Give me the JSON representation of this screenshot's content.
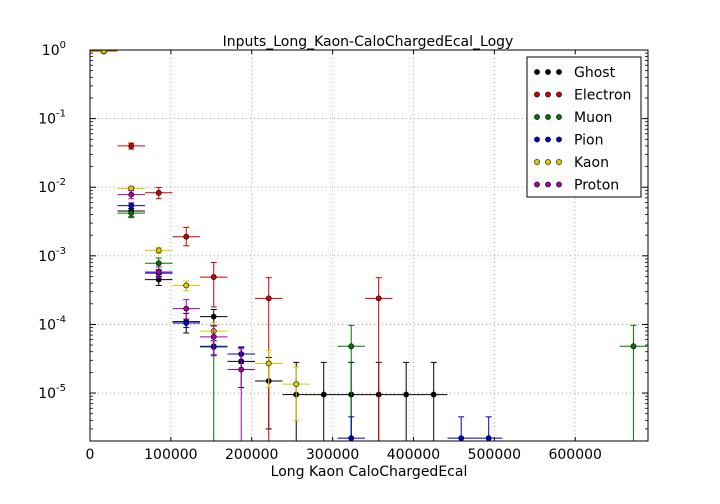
{
  "chart_data": {
    "type": "scatter",
    "title": "Inputs_Long_Kaon-CaloChargedEcal_Logy",
    "xlabel": "Long Kaon CaloChargedEcal",
    "ylabel": "",
    "xlim": [
      0,
      690000
    ],
    "ylim": [
      2e-06,
      1
    ],
    "yscale": "log",
    "grid": true,
    "legend_position": "top-right",
    "x_ticks": [
      0,
      100000,
      200000,
      300000,
      400000,
      500000,
      600000
    ],
    "x_tick_labels": [
      "0",
      "100000",
      "200000",
      "300000",
      "400000",
      "500000",
      "600000"
    ],
    "y_ticks": [
      1e-05,
      0.0001,
      0.001,
      0.01,
      0.1,
      1
    ],
    "y_tick_labels": [
      {
        "base": "10",
        "exp": "-5"
      },
      {
        "base": "10",
        "exp": "-4"
      },
      {
        "base": "10",
        "exp": "-3"
      },
      {
        "base": "10",
        "exp": "-2"
      },
      {
        "base": "10",
        "exp": "-1"
      },
      {
        "base": "10",
        "exp": "0"
      }
    ],
    "bin_half_width": 17000,
    "series": [
      {
        "name": "Ghost",
        "color": "#000000",
        "points": [
          {
            "x": 17000,
            "y": 0.97,
            "lo": 0.95,
            "hi": 0.99
          },
          {
            "x": 51000,
            "y": 0.0045,
            "lo": 0.0037,
            "hi": 0.0053
          },
          {
            "x": 85000,
            "y": 0.00045,
            "lo": 0.00037,
            "hi": 0.00053
          },
          {
            "x": 119000,
            "y": 0.00011,
            "lo": 7.5e-05,
            "hi": 0.000145
          },
          {
            "x": 153000,
            "y": 0.00013,
            "lo": 9.5e-05,
            "hi": 0.000165
          },
          {
            "x": 187000,
            "y": 2.9e-05,
            "lo": 1.2e-05,
            "hi": 4.6e-05
          },
          {
            "x": 221000,
            "y": 1.5e-05,
            "lo": 3e-06,
            "hi": 3.3e-05
          },
          {
            "x": 255000,
            "y": 9.5e-06,
            "lo": 1e-06,
            "hi": 2.8e-05
          },
          {
            "x": 289000,
            "y": 9.5e-06,
            "lo": 1e-06,
            "hi": 2.8e-05
          },
          {
            "x": 323000,
            "y": 9.5e-06,
            "lo": 1e-06,
            "hi": 2.8e-05
          },
          {
            "x": 357000,
            "y": 9.5e-06,
            "lo": 1e-06,
            "hi": 2.8e-05
          },
          {
            "x": 391000,
            "y": 9.5e-06,
            "lo": 1e-06,
            "hi": 2.8e-05
          },
          {
            "x": 425000,
            "y": 9.5e-06,
            "lo": 1e-06,
            "hi": 2.8e-05
          }
        ]
      },
      {
        "name": "Electron",
        "color": "#cc0000",
        "points": [
          {
            "x": 17000,
            "y": 0.95,
            "lo": 0.92,
            "hi": 0.98
          },
          {
            "x": 51000,
            "y": 0.04,
            "lo": 0.036,
            "hi": 0.044
          },
          {
            "x": 85000,
            "y": 0.0083,
            "lo": 0.0068,
            "hi": 0.0099
          },
          {
            "x": 119000,
            "y": 0.0019,
            "lo": 0.0014,
            "hi": 0.0026
          },
          {
            "x": 153000,
            "y": 0.00049,
            "lo": 0.00018,
            "hi": 0.0008
          },
          {
            "x": 221000,
            "y": 0.00024,
            "lo": 1e-06,
            "hi": 0.00048
          },
          {
            "x": 357000,
            "y": 0.00024,
            "lo": 1e-06,
            "hi": 0.00048
          }
        ]
      },
      {
        "name": "Muon",
        "color": "#007700",
        "points": [
          {
            "x": 51000,
            "y": 0.0042,
            "lo": 0.0036,
            "hi": 0.0049
          },
          {
            "x": 85000,
            "y": 0.00078,
            "lo": 0.00063,
            "hi": 0.00093
          },
          {
            "x": 153000,
            "y": 4.8e-05,
            "lo": 1e-06,
            "hi": 9.7e-05
          },
          {
            "x": 323000,
            "y": 4.8e-05,
            "lo": 1e-06,
            "hi": 9.7e-05
          },
          {
            "x": 672000,
            "y": 4.8e-05,
            "lo": 1e-06,
            "hi": 9.7e-05
          }
        ]
      },
      {
        "name": "Pion",
        "color": "#0000cc",
        "points": [
          {
            "x": 51000,
            "y": 0.0054,
            "lo": 0.0049,
            "hi": 0.0059
          },
          {
            "x": 85000,
            "y": 0.00056,
            "lo": 0.0005,
            "hi": 0.00062
          },
          {
            "x": 119000,
            "y": 0.000105,
            "lo": 9e-05,
            "hi": 0.00012
          },
          {
            "x": 153000,
            "y": 4.7e-05,
            "lo": 3.6e-05,
            "hi": 5.8e-05
          },
          {
            "x": 187000,
            "y": 3.7e-05,
            "lo": 2.7e-05,
            "hi": 4.7e-05
          },
          {
            "x": 323000,
            "y": 2.2e-06,
            "lo": 1e-06,
            "hi": 4.5e-06
          },
          {
            "x": 459000,
            "y": 2.2e-06,
            "lo": 1e-06,
            "hi": 4.5e-06
          },
          {
            "x": 493000,
            "y": 2.2e-06,
            "lo": 1e-06,
            "hi": 4.5e-06
          }
        ]
      },
      {
        "name": "Kaon",
        "color": "#ddcc00",
        "points": [
          {
            "x": 17000,
            "y": 0.96,
            "lo": 0.94,
            "hi": 0.98
          },
          {
            "x": 51000,
            "y": 0.0096,
            "lo": 0.009,
            "hi": 0.0102
          },
          {
            "x": 85000,
            "y": 0.0012,
            "lo": 0.00108,
            "hi": 0.00132
          },
          {
            "x": 119000,
            "y": 0.00037,
            "lo": 0.00031,
            "hi": 0.00043
          },
          {
            "x": 153000,
            "y": 8e-05,
            "lo": 5.5e-05,
            "hi": 0.000105
          },
          {
            "x": 221000,
            "y": 2.7e-05,
            "lo": 1.2e-05,
            "hi": 4.2e-05
          },
          {
            "x": 255000,
            "y": 1.35e-05,
            "lo": 4e-06,
            "hi": 2.4e-05
          }
        ]
      },
      {
        "name": "Proton",
        "color": "#aa00aa",
        "points": [
          {
            "x": 51000,
            "y": 0.0078,
            "lo": 0.0068,
            "hi": 0.0089
          },
          {
            "x": 85000,
            "y": 0.00058,
            "lo": 0.00048,
            "hi": 0.00069
          },
          {
            "x": 119000,
            "y": 0.00017,
            "lo": 0.00012,
            "hi": 0.00023
          },
          {
            "x": 153000,
            "y": 6.6e-05,
            "lo": 3.5e-05,
            "hi": 9.7e-05
          },
          {
            "x": 187000,
            "y": 2.2e-05,
            "lo": 1e-06,
            "hi": 4.4e-05
          }
        ]
      }
    ]
  }
}
